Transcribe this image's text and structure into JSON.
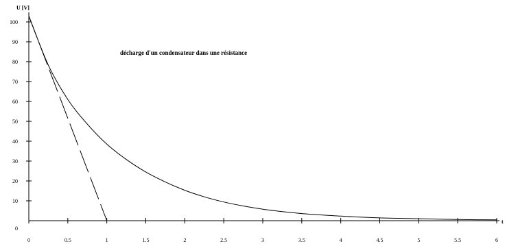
{
  "chart_data": {
    "type": "line",
    "title": "décharge d'un condensateur dans une résistance",
    "xlabel": "t",
    "ylabel": "U [V]",
    "xlim": [
      0,
      6
    ],
    "ylim": [
      0,
      100
    ],
    "x_ticks": [
      0,
      0.5,
      1,
      1.5,
      2,
      2.5,
      3,
      3.5,
      4,
      4.5,
      5,
      5.5,
      6
    ],
    "x_tick_labels": [
      "0",
      "0.5",
      "1",
      "1.5",
      "2",
      "2.5",
      "3",
      "3.5",
      "4",
      "4.5",
      "5",
      "5.5",
      "6"
    ],
    "y_ticks": [
      10,
      20,
      30,
      40,
      50,
      60,
      70,
      80,
      90,
      100
    ],
    "y_tick_labels": [
      "10",
      "20",
      "30",
      "40",
      "50",
      "60",
      "70",
      "80",
      "90",
      "100"
    ],
    "y_zero_label": "0",
    "grid": false,
    "legend": "none",
    "line_color": "#000000",
    "series": [
      {
        "style": "solid",
        "x": [
          0,
          0.25,
          0.5,
          0.75,
          1,
          1.25,
          1.5,
          1.75,
          2,
          2.25,
          2.5,
          2.75,
          3,
          3.25,
          3.5,
          3.75,
          4,
          4.25,
          4.5,
          4.75,
          5,
          5.25,
          5.5,
          5.75,
          6
        ],
        "values": [
          103,
          78.3,
          61,
          48.6,
          38.5,
          30.8,
          24.5,
          19.5,
          15.3,
          12,
          9.4,
          7.4,
          5.8,
          4.6,
          3.6,
          2.9,
          2.3,
          1.8,
          1.4,
          1.2,
          1,
          0.8,
          0.6,
          0.5,
          0.4
        ]
      },
      {
        "style": "dashed",
        "x": [
          0,
          1
        ],
        "values": [
          103,
          0
        ]
      }
    ]
  }
}
